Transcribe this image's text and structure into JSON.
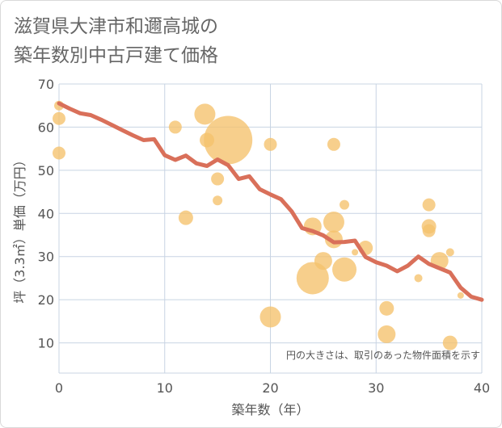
{
  "title": {
    "line1": "滋賀県大津市和邇高城の",
    "line2": "築年数別中古戸建て価格"
  },
  "chart_data": {
    "type": "scatter",
    "xlabel": "築年数（年）",
    "ylabel": "坪（3.3㎡）単価（万円）",
    "xlim": [
      0,
      40
    ],
    "ylim": [
      3,
      70
    ],
    "xticks": [
      0,
      10,
      20,
      30,
      40
    ],
    "yticks": [
      10,
      20,
      30,
      40,
      50,
      60,
      70
    ],
    "grid": true,
    "note": "円の大きさは、取引のあった物件面積を示す",
    "colors": {
      "bubble": "#f5c26b",
      "line": "#d9705a",
      "grid": "#c8d4e3"
    },
    "bubbles": [
      {
        "x": 0,
        "y": 65,
        "size": 6
      },
      {
        "x": 0,
        "y": 62,
        "size": 8
      },
      {
        "x": 0,
        "y": 54,
        "size": 8
      },
      {
        "x": 11,
        "y": 60,
        "size": 8
      },
      {
        "x": 12,
        "y": 39,
        "size": 9
      },
      {
        "x": 13.8,
        "y": 63,
        "size": 13
      },
      {
        "x": 14,
        "y": 57,
        "size": 9
      },
      {
        "x": 15,
        "y": 48,
        "size": 8
      },
      {
        "x": 15,
        "y": 43,
        "size": 6
      },
      {
        "x": 16,
        "y": 57,
        "size": 30
      },
      {
        "x": 20,
        "y": 56,
        "size": 8
      },
      {
        "x": 20,
        "y": 16,
        "size": 13
      },
      {
        "x": 24,
        "y": 37,
        "size": 11
      },
      {
        "x": 24,
        "y": 25,
        "size": 20
      },
      {
        "x": 25,
        "y": 29,
        "size": 11
      },
      {
        "x": 26,
        "y": 56,
        "size": 8
      },
      {
        "x": 26,
        "y": 38,
        "size": 13
      },
      {
        "x": 26,
        "y": 34,
        "size": 11
      },
      {
        "x": 27,
        "y": 42,
        "size": 6
      },
      {
        "x": 27,
        "y": 27,
        "size": 15
      },
      {
        "x": 28,
        "y": 31,
        "size": 4
      },
      {
        "x": 29,
        "y": 32,
        "size": 9
      },
      {
        "x": 31,
        "y": 18,
        "size": 9
      },
      {
        "x": 31,
        "y": 12,
        "size": 11
      },
      {
        "x": 34,
        "y": 25,
        "size": 5
      },
      {
        "x": 35,
        "y": 42,
        "size": 8
      },
      {
        "x": 35,
        "y": 37,
        "size": 9
      },
      {
        "x": 35,
        "y": 36,
        "size": 8
      },
      {
        "x": 36,
        "y": 29,
        "size": 11
      },
      {
        "x": 37,
        "y": 31,
        "size": 5
      },
      {
        "x": 37,
        "y": 10,
        "size": 9
      },
      {
        "x": 38,
        "y": 21,
        "size": 4
      }
    ],
    "trend": {
      "x": [
        0,
        1,
        2,
        3,
        4,
        5,
        6,
        7,
        8,
        9,
        10,
        11,
        12,
        13,
        14,
        15,
        16,
        17,
        18,
        19,
        20,
        21,
        22,
        23,
        24,
        25,
        26,
        27,
        28,
        29,
        30,
        31,
        32,
        33,
        34,
        35,
        36,
        37,
        38,
        39,
        40
      ],
      "y": [
        65.5,
        64.3,
        63.2,
        62.8,
        61.7,
        60.5,
        59.3,
        58.1,
        57.0,
        57.2,
        53.5,
        52.4,
        53.4,
        51.6,
        51.0,
        52.5,
        51.2,
        48.0,
        48.6,
        45.6,
        44.4,
        43.3,
        40.5,
        36.6,
        35.9,
        34.9,
        33.3,
        33.4,
        33.7,
        29.9,
        28.7,
        27.9,
        26.6,
        27.9,
        30.0,
        28.3,
        27.3,
        26.3,
        22.8,
        20.7,
        20.0
      ]
    }
  }
}
